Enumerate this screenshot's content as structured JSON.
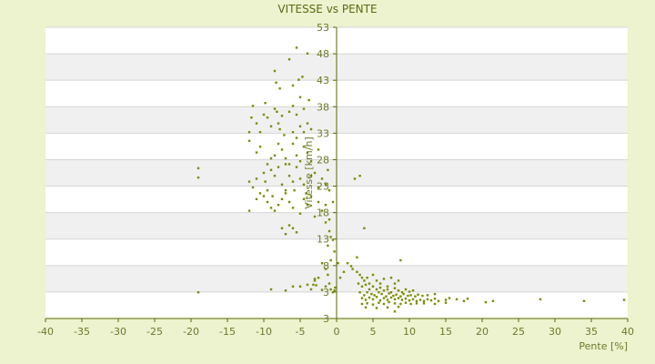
{
  "chart_data": {
    "type": "scatter",
    "title": "VITESSE vs PENTE",
    "xlabel": "Pente [%]",
    "ylabel": "Vitesse [km/h]",
    "xlim": [
      -40,
      40
    ],
    "ylim": [
      3,
      53
    ],
    "x_ticks": [
      "-40",
      "-35",
      "-30",
      "-25",
      "-20",
      "-15",
      "-10",
      "-5",
      "0",
      "5",
      "10",
      "15",
      "20",
      "25",
      "30",
      "35",
      "40"
    ],
    "y_ticks": [
      "53",
      "48",
      "43",
      "38",
      "33",
      "28",
      "23",
      "18",
      "13",
      "8",
      "3",
      "3"
    ],
    "grid": "horizontal bands",
    "colors": {
      "point": "#7a8b00",
      "band_alt": "#f0f0f0",
      "plot_bg": "#ffffff",
      "axis": "#556b00"
    },
    "points": [
      [
        -19,
        28.8
      ],
      [
        -19,
        27.2
      ],
      [
        -19,
        7.5
      ],
      [
        -12,
        35.0
      ],
      [
        -11.7,
        37.5
      ],
      [
        -11.5,
        39.5
      ],
      [
        -11,
        36.5
      ],
      [
        -10.5,
        35.0
      ],
      [
        -10,
        38.0
      ],
      [
        -9.8,
        40.0
      ],
      [
        -9.5,
        37.5
      ],
      [
        -9,
        36.0
      ],
      [
        -8.5,
        39.0
      ],
      [
        -8.2,
        38.5
      ],
      [
        -8,
        36.5
      ],
      [
        -7.8,
        35.5
      ],
      [
        -7.5,
        37.8
      ],
      [
        -7.2,
        34.5
      ],
      [
        -8.5,
        45.5
      ],
      [
        -8.3,
        43.5
      ],
      [
        -7.8,
        42.5
      ],
      [
        -6.5,
        47.5
      ],
      [
        -6,
        43.0
      ],
      [
        -5.5,
        49.5
      ],
      [
        -5.2,
        44.0
      ],
      [
        -4.7,
        44.5
      ],
      [
        -4,
        48.5
      ],
      [
        -6.5,
        38.5
      ],
      [
        -6,
        39.5
      ],
      [
        -5.5,
        38.0
      ],
      [
        -5,
        41.0
      ],
      [
        -4.5,
        39.0
      ],
      [
        -3.8,
        40.5
      ],
      [
        -5,
        36.0
      ],
      [
        -4.5,
        35.0
      ],
      [
        -4,
        36.5
      ],
      [
        -3.5,
        35.5
      ],
      [
        -6,
        35.0
      ],
      [
        -5.5,
        34.0
      ],
      [
        -12,
        33.5
      ],
      [
        -11,
        31.5
      ],
      [
        -10.5,
        32.5
      ],
      [
        -9.5,
        29.5
      ],
      [
        -9,
        30.5
      ],
      [
        -8.5,
        31.0
      ],
      [
        -8,
        33.0
      ],
      [
        -7.5,
        32.0
      ],
      [
        -7,
        30.5
      ],
      [
        -6.5,
        29.5
      ],
      [
        -6,
        33.0
      ],
      [
        -5.5,
        31.0
      ],
      [
        -5,
        30.0
      ],
      [
        -4.5,
        32.5
      ],
      [
        -4,
        31.5
      ],
      [
        -3.5,
        30.0
      ],
      [
        -2.5,
        32.0
      ],
      [
        -12,
        26.5
      ],
      [
        -11.5,
        25.5
      ],
      [
        -11,
        27.0
      ],
      [
        -10.5,
        24.5
      ],
      [
        -10,
        28.0
      ],
      [
        -9.8,
        26.5
      ],
      [
        -9.5,
        25.0
      ],
      [
        -9,
        28.5
      ],
      [
        -8.8,
        24.0
      ],
      [
        -8.5,
        27.5
      ],
      [
        -8,
        29.0
      ],
      [
        -7.5,
        26.0
      ],
      [
        -7,
        25.0
      ],
      [
        -7,
        29.5
      ],
      [
        -6.5,
        27.5
      ],
      [
        -6,
        26.5
      ],
      [
        -5.8,
        25.0
      ],
      [
        -5.5,
        29.0
      ],
      [
        -5,
        27.0
      ],
      [
        -4.5,
        26.0
      ],
      [
        -4.2,
        24.5
      ],
      [
        -3.5,
        27.5
      ],
      [
        -3,
        28.0
      ],
      [
        -2.5,
        25.5
      ],
      [
        -2,
        27.0
      ],
      [
        -1.5,
        26.0
      ],
      [
        -1,
        25.0
      ],
      [
        -0.5,
        23.0
      ],
      [
        -1.2,
        28.5
      ],
      [
        -12,
        21.5
      ],
      [
        -11,
        23.5
      ],
      [
        -10,
        24.0
      ],
      [
        -9.5,
        23.0
      ],
      [
        -9,
        22.0
      ],
      [
        -8.5,
        21.5
      ],
      [
        -8,
        22.5
      ],
      [
        -7.5,
        23.5
      ],
      [
        -7,
        24.5
      ],
      [
        -6.5,
        23.0
      ],
      [
        -6,
        22.0
      ],
      [
        -5,
        21.0
      ],
      [
        -4.5,
        23.5
      ],
      [
        -4,
        22.5
      ],
      [
        -3.5,
        24.0
      ],
      [
        -3,
        20.5
      ],
      [
        -2.5,
        23.0
      ],
      [
        -2,
        21.5
      ],
      [
        -1.5,
        22.5
      ],
      [
        -1,
        20.0
      ],
      [
        -7.5,
        18.5
      ],
      [
        -7,
        17.5
      ],
      [
        -6.5,
        19.0
      ],
      [
        -6,
        18.5
      ],
      [
        -5.5,
        17.8
      ],
      [
        -1.5,
        19.5
      ],
      [
        -1,
        18.0
      ],
      [
        -0.5,
        16.5
      ],
      [
        -1.2,
        15.5
      ],
      [
        -0.8,
        17.0
      ],
      [
        -0.3,
        14.5
      ],
      [
        -2,
        12.5
      ],
      [
        -1.5,
        11.5
      ],
      [
        -1.2,
        10.5
      ],
      [
        -0.8,
        13.0
      ],
      [
        -2.5,
        10.0
      ],
      [
        -3,
        9.5
      ],
      [
        -2.8,
        8.7
      ],
      [
        -3.2,
        8.8
      ],
      [
        -1.5,
        8.5
      ],
      [
        -1,
        9.0
      ],
      [
        -0.8,
        8.0
      ],
      [
        -0.5,
        7.5
      ],
      [
        -0.2,
        8.3
      ],
      [
        -9,
        8.0
      ],
      [
        -7,
        7.8
      ],
      [
        -6,
        8.5
      ],
      [
        -4,
        8.8
      ],
      [
        -3.5,
        8.0
      ],
      [
        -0.3,
        7.8
      ],
      [
        2.5,
        27.0
      ],
      [
        3.2,
        27.5
      ],
      [
        3.8,
        18.5
      ],
      [
        2.8,
        13.5
      ],
      [
        2,
        12.0
      ],
      [
        1.5,
        12.5
      ],
      [
        1,
        11.0
      ],
      [
        0.5,
        10.0
      ],
      [
        0.2,
        12.5
      ],
      [
        2.2,
        11.5
      ],
      [
        2.8,
        11.0
      ],
      [
        3.2,
        10.5
      ],
      [
        3.5,
        10.0
      ],
      [
        3.8,
        9.5
      ],
      [
        4.2,
        10.0
      ],
      [
        4.5,
        9.0
      ],
      [
        5,
        10.5
      ],
      [
        5.5,
        9.5
      ],
      [
        6,
        9.0
      ],
      [
        6.5,
        9.8
      ],
      [
        7,
        8.5
      ],
      [
        7.5,
        10.0
      ],
      [
        8,
        9.0
      ],
      [
        8.5,
        9.5
      ],
      [
        8.8,
        13.0
      ],
      [
        3,
        9.0
      ],
      [
        3.5,
        8.5
      ],
      [
        4,
        8.8
      ],
      [
        4.5,
        8.0
      ],
      [
        5,
        8.5
      ],
      [
        5.5,
        8.0
      ],
      [
        6,
        8.3
      ],
      [
        6.5,
        7.8
      ],
      [
        7,
        8.0
      ],
      [
        7.5,
        7.5
      ],
      [
        8,
        8.2
      ],
      [
        8.5,
        7.8
      ],
      [
        9,
        7.5
      ],
      [
        9.5,
        8.0
      ],
      [
        10,
        7.6
      ],
      [
        10.5,
        7.8
      ],
      [
        3.2,
        7.5
      ],
      [
        3.8,
        7.0
      ],
      [
        4.2,
        7.5
      ],
      [
        4.8,
        7.2
      ],
      [
        5.2,
        7.0
      ],
      [
        5.8,
        7.5
      ],
      [
        6.2,
        7.2
      ],
      [
        6.8,
        6.8
      ],
      [
        7.2,
        7.3
      ],
      [
        7.8,
        6.9
      ],
      [
        8.2,
        7.1
      ],
      [
        8.8,
        6.8
      ],
      [
        9.2,
        7.2
      ],
      [
        9.8,
        6.9
      ],
      [
        10.2,
        7.0
      ],
      [
        10.8,
        6.8
      ],
      [
        11.2,
        7.1
      ],
      [
        11.8,
        6.9
      ],
      [
        12.5,
        7.0
      ],
      [
        13.5,
        7.2
      ],
      [
        3.5,
        6.5
      ],
      [
        4,
        6.2
      ],
      [
        4.5,
        6.6
      ],
      [
        5,
        6.3
      ],
      [
        5.5,
        6.7
      ],
      [
        6,
        6.1
      ],
      [
        6.5,
        6.5
      ],
      [
        7,
        6.2
      ],
      [
        7.5,
        6.6
      ],
      [
        8,
        6.3
      ],
      [
        8.5,
        6.5
      ],
      [
        9,
        6.2
      ],
      [
        9.5,
        6.4
      ],
      [
        10,
        6.1
      ],
      [
        10.5,
        6.3
      ],
      [
        11,
        6.0
      ],
      [
        11.5,
        6.2
      ],
      [
        12,
        6.0
      ],
      [
        12.5,
        6.3
      ],
      [
        13,
        6.1
      ],
      [
        13.5,
        6.4
      ],
      [
        14,
        6.0
      ],
      [
        15,
        6.2
      ],
      [
        15.5,
        6.5
      ],
      [
        16.5,
        6.3
      ],
      [
        17.5,
        6.0
      ],
      [
        18,
        6.4
      ],
      [
        3.5,
        5.5
      ],
      [
        4.2,
        5.6
      ],
      [
        5,
        5.4
      ],
      [
        5.8,
        5.7
      ],
      [
        6.5,
        5.5
      ],
      [
        7.2,
        5.8
      ],
      [
        8,
        5.6
      ],
      [
        8.8,
        5.5
      ],
      [
        9.5,
        5.7
      ],
      [
        10.2,
        5.5
      ],
      [
        11,
        5.6
      ],
      [
        12,
        5.6
      ],
      [
        13.5,
        5.5
      ],
      [
        15,
        5.7
      ],
      [
        4,
        4.9
      ],
      [
        5.5,
        4.8
      ],
      [
        7,
        4.9
      ],
      [
        8.5,
        5.0
      ],
      [
        8,
        4.2
      ],
      [
        20.5,
        5.8
      ],
      [
        21.5,
        6.0
      ],
      [
        28,
        6.3
      ],
      [
        34,
        6.0
      ],
      [
        39.5,
        6.2
      ],
      [
        -5,
        8.5
      ],
      [
        -3,
        9.8
      ],
      [
        -2,
        7.9
      ]
    ]
  }
}
